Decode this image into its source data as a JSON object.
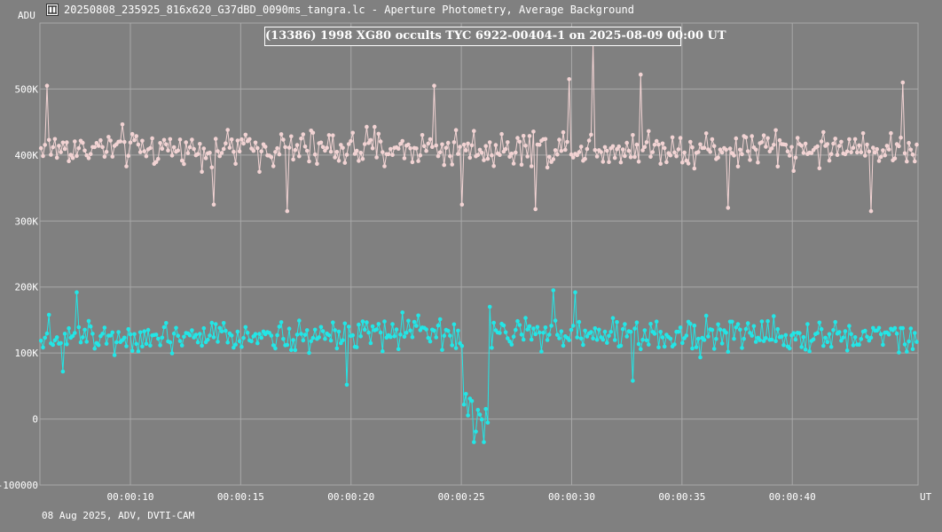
{
  "window": {
    "title": "20250808_235925_816x620_G37dBD_0090ms_tangra.lc - Aperture Photometry, Average Background",
    "icon": "tangra-app-icon"
  },
  "footer": {
    "text": "08 Aug 2025, ADV, DVTI-CAM"
  },
  "colors": {
    "background": "#808080",
    "grid": "#a8a8a8",
    "text": "#ffffff",
    "series_upper": "#f2d3d3",
    "series_lower": "#22e6e6"
  },
  "chart_data": {
    "type": "line",
    "title": "(13386) 1998 XG80 occults TYC 6922-00404-1 on 2025-08-09  00:00 UT",
    "ylabel": "ADU",
    "xlabel": "UT",
    "ylim": [
      -100000,
      600000
    ],
    "y_ticks": [
      {
        "value": -100000,
        "label": "-100000"
      },
      {
        "value": 0,
        "label": "0"
      },
      {
        "value": 100000,
        "label": "100K"
      },
      {
        "value": 200000,
        "label": "200K"
      },
      {
        "value": 300000,
        "label": "300K"
      },
      {
        "value": 400000,
        "label": "400K"
      },
      {
        "value": 500000,
        "label": "500K"
      }
    ],
    "xlim": [
      5.9,
      45.7
    ],
    "x_ticks": [
      {
        "value": 10,
        "label": "00:00:10"
      },
      {
        "value": 15,
        "label": "00:00:15"
      },
      {
        "value": 20,
        "label": "00:00:20"
      },
      {
        "value": 25,
        "label": "00:00:25"
      },
      {
        "value": 30,
        "label": "00:00:30"
      },
      {
        "value": 35,
        "label": "00:00:35"
      },
      {
        "value": 40,
        "label": "00:00:40"
      }
    ],
    "grid": true,
    "frame_interval_s": 0.09,
    "series": [
      {
        "role": "comparison",
        "baseline": 410000,
        "noise": 55000,
        "events": [],
        "spikes": [
          {
            "t": 6.2,
            "v": 505000
          },
          {
            "t": 13.8,
            "v": 325000
          },
          {
            "t": 17.1,
            "v": 315000
          },
          {
            "t": 23.8,
            "v": 505000
          },
          {
            "t": 25.0,
            "v": 325000
          },
          {
            "t": 28.4,
            "v": 318000
          },
          {
            "t": 29.9,
            "v": 515000
          },
          {
            "t": 31.0,
            "v": 568000
          },
          {
            "t": 33.1,
            "v": 522000
          },
          {
            "t": 37.1,
            "v": 320000
          },
          {
            "t": 43.6,
            "v": 315000
          },
          {
            "t": 45.0,
            "v": 510000
          }
        ]
      },
      {
        "role": "target",
        "baseline": 128000,
        "noise": 50000,
        "events": [
          {
            "t_start": 25.05,
            "t_end": 26.2,
            "level": 5000,
            "noise": 45000
          }
        ],
        "spikes": [
          {
            "t": 7.6,
            "v": 192000
          },
          {
            "t": 29.2,
            "v": 195000
          },
          {
            "t": 30.2,
            "v": 192000
          },
          {
            "t": 32.8,
            "v": 58000
          },
          {
            "t": 19.8,
            "v": 52000
          },
          {
            "t": 6.9,
            "v": 72000
          },
          {
            "t": 25.2,
            "v": 38000
          },
          {
            "t": 25.6,
            "v": -35000
          },
          {
            "t": 26.0,
            "v": -35000
          },
          {
            "t": 26.3,
            "v": 170000
          }
        ]
      }
    ]
  }
}
